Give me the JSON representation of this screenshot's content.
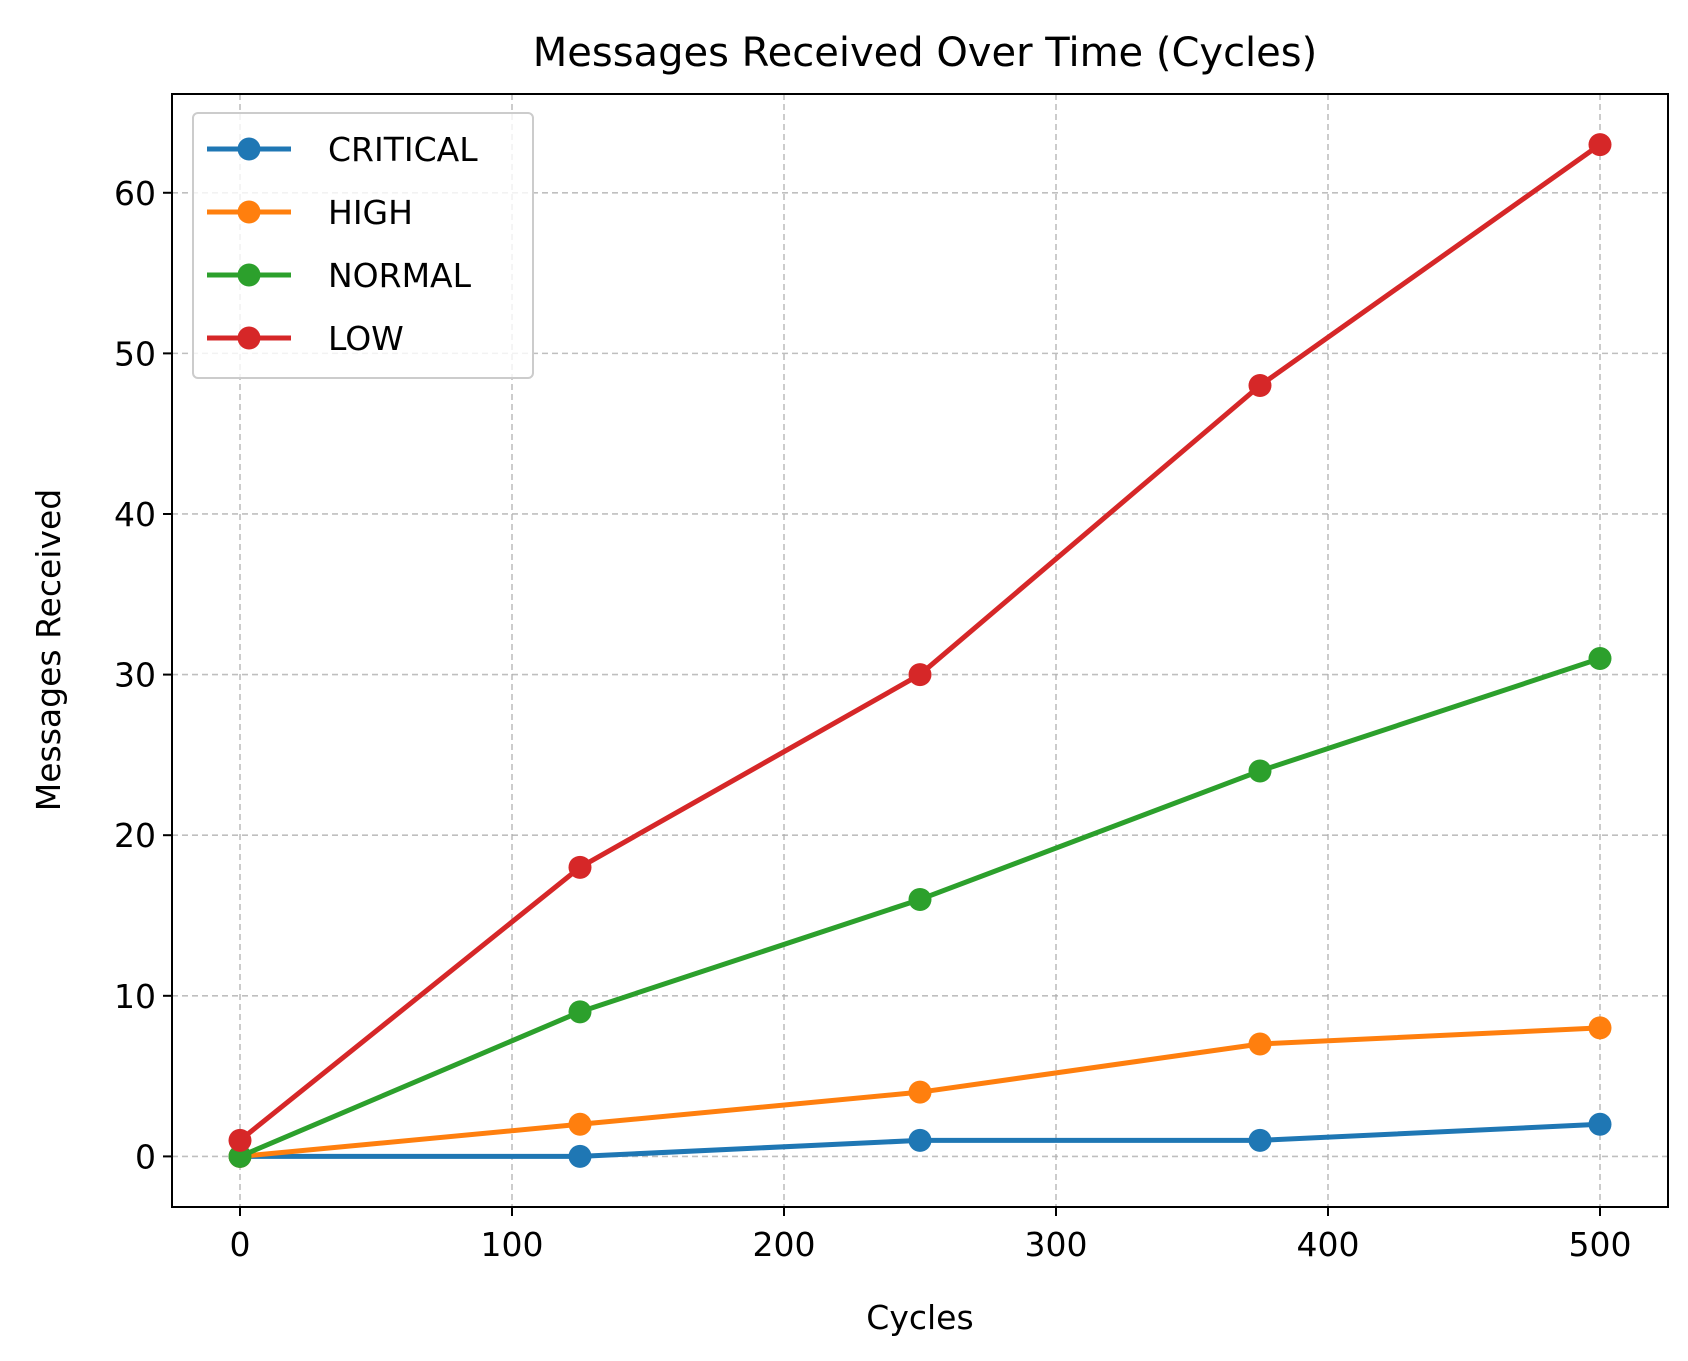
{
  "chart_data": {
    "type": "line",
    "title": "Messages Received Over Time (Cycles)",
    "xlabel": "Cycles",
    "ylabel": "Messages Received",
    "xlim": [
      -25,
      525
    ],
    "ylim": [
      -3.15,
      66.15
    ],
    "xticks": [
      0,
      100,
      200,
      300,
      400,
      500
    ],
    "yticks": [
      0,
      10,
      20,
      30,
      40,
      50,
      60
    ],
    "grid": true,
    "legend_position": "top-left",
    "x": [
      0,
      125,
      250,
      375,
      500
    ],
    "series": [
      {
        "name": "CRITICAL",
        "color": "#1f77b4",
        "values": [
          0,
          0,
          1,
          1,
          2
        ]
      },
      {
        "name": "HIGH",
        "color": "#ff7f0e",
        "values": [
          0,
          2,
          4,
          7,
          8
        ]
      },
      {
        "name": "NORMAL",
        "color": "#2ca02c",
        "values": [
          0,
          9,
          16,
          24,
          31
        ]
      },
      {
        "name": "LOW",
        "color": "#d62728",
        "values": [
          1,
          18,
          30,
          48,
          63
        ]
      }
    ]
  }
}
